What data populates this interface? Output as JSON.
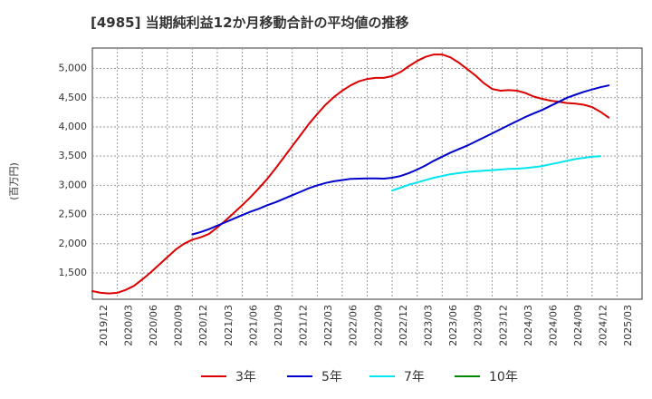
{
  "chart_data": {
    "type": "line",
    "title": "[4985]  当期純利益12か月移動合計の平均値の推移",
    "ylabel": "(百万円)",
    "xlabel": "",
    "ylim": [
      1050,
      5350
    ],
    "yticks": [
      1500,
      2000,
      2500,
      3000,
      3500,
      4000,
      4500,
      5000
    ],
    "ytick_labels": [
      "1,500",
      "2,000",
      "2,500",
      "3,000",
      "3,500",
      "4,000",
      "4,500",
      "5,000"
    ],
    "x_ticks": [
      "2019/12",
      "2020/03",
      "2020/06",
      "2020/09",
      "2020/12",
      "2021/03",
      "2021/06",
      "2021/09",
      "2021/12",
      "2022/03",
      "2022/06",
      "2022/09",
      "2022/12",
      "2023/03",
      "2023/06",
      "2023/09",
      "2023/12",
      "2024/03",
      "2024/06",
      "2024/09",
      "2024/12",
      "2025/03"
    ],
    "grid": true,
    "legend_position": "bottom",
    "series": [
      {
        "name": "3年",
        "color": "#dd0000",
        "start_index": 0,
        "values": [
          1190,
          1160,
          1150,
          1160,
          1210,
          1280,
          1390,
          1510,
          1640,
          1770,
          1900,
          2000,
          2070,
          2110,
          2170,
          2280,
          2400,
          2530,
          2660,
          2800,
          2950,
          3110,
          3290,
          3480,
          3670,
          3860,
          4050,
          4220,
          4380,
          4510,
          4620,
          4710,
          4780,
          4820,
          4840,
          4840,
          4870,
          4940,
          5040,
          5130,
          5200,
          5240,
          5240,
          5190,
          5100,
          4990,
          4880,
          4750,
          4650,
          4620,
          4630,
          4620,
          4580,
          4520,
          4480,
          4450,
          4430,
          4410,
          4400,
          4380,
          4340,
          4260,
          4160
        ]
      },
      {
        "name": "5年",
        "color": "#0000cc",
        "start_index": 12,
        "values": [
          2160,
          2200,
          2250,
          2310,
          2370,
          2430,
          2490,
          2550,
          2600,
          2660,
          2710,
          2770,
          2830,
          2890,
          2950,
          3000,
          3040,
          3070,
          3090,
          3110,
          3115,
          3120,
          3120,
          3115,
          3130,
          3160,
          3210,
          3270,
          3340,
          3420,
          3490,
          3560,
          3620,
          3680,
          3750,
          3820,
          3890,
          3960,
          4030,
          4100,
          4170,
          4230,
          4290,
          4360,
          4430,
          4500,
          4550,
          4600,
          4640,
          4680,
          4710
        ]
      },
      {
        "name": "7年",
        "color": "#00e5ee",
        "start_index": 36,
        "values": [
          2910,
          2960,
          3010,
          3050,
          3090,
          3130,
          3160,
          3190,
          3210,
          3230,
          3240,
          3250,
          3260,
          3270,
          3280,
          3285,
          3295,
          3310,
          3330,
          3360,
          3390,
          3420,
          3450,
          3470,
          3490,
          3500
        ]
      },
      {
        "name": "10年",
        "color": "#008800",
        "start_index": 62,
        "values": []
      }
    ]
  }
}
